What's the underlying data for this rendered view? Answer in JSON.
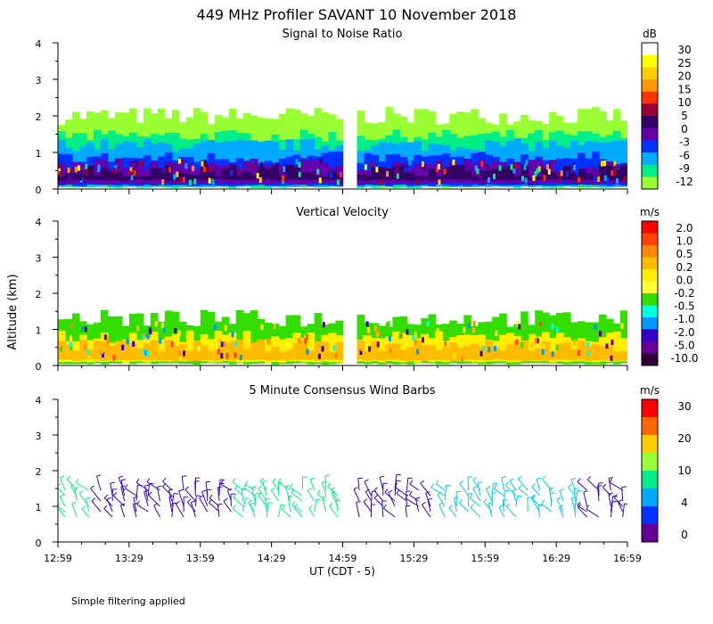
{
  "title": "449 MHz Profiler SAVANT 10 November 2018",
  "ylabel": "Altitude (km)",
  "xlabel": "UT  (CDT - 5)",
  "footnote": "Simple filtering applied",
  "x_ticks": [
    "12:59",
    "13:29",
    "13:59",
    "14:29",
    "14:59",
    "15:29",
    "15:59",
    "16:29",
    "16:59"
  ],
  "colors": {
    "background": "#ffffff",
    "axis": "#000000"
  },
  "chart_data": [
    {
      "type": "heatmap",
      "title": "Signal to Noise Ratio",
      "unit": "dB",
      "ylim": [
        0,
        4
      ],
      "y_ticks": [
        "0",
        "1",
        "2",
        "3",
        "4"
      ],
      "x_range": [
        "12:59",
        "16:59"
      ],
      "colorbar": {
        "labels": [
          "30",
          "25",
          "20",
          "15",
          "10",
          "5",
          "0",
          "-3",
          "-6",
          "-9",
          "-12"
        ],
        "colors": [
          "#ffffff",
          "#ffff00",
          "#ffcc00",
          "#ff9900",
          "#ff3300",
          "#990033",
          "#330066",
          "#6600aa",
          "#0033ff",
          "#00aaff",
          "#00ee88",
          "#99ff33"
        ]
      },
      "bands": [
        {
          "bottom": 0.05,
          "top": 2.0,
          "color": "#99ff33"
        },
        {
          "bottom": 0.05,
          "top": 1.45,
          "color": "#00ee88"
        },
        {
          "bottom": 0.08,
          "top": 1.2,
          "color": "#00aaff"
        },
        {
          "bottom": 0.1,
          "top": 0.85,
          "color": "#0033ff"
        },
        {
          "bottom": 0.15,
          "top": 0.65,
          "color": "#6600aa"
        },
        {
          "bottom": 0.25,
          "top": 0.5,
          "color": "#330066"
        }
      ],
      "data_gap": [
        "14:59",
        "15:03"
      ]
    },
    {
      "type": "heatmap",
      "title": "Vertical Velocity",
      "unit": "m/s",
      "ylim": [
        0,
        4
      ],
      "y_ticks": [
        "0",
        "1",
        "2",
        "3",
        "4"
      ],
      "x_range": [
        "12:59",
        "16:59"
      ],
      "colorbar": {
        "labels": [
          "2.0",
          "1.0",
          "0.5",
          "0.2",
          "0.0",
          "-0.2",
          "-0.5",
          "-1.0",
          "-2.0",
          "-5.0",
          "-10.0"
        ],
        "colors": [
          "#ff0000",
          "#ff4400",
          "#ff8800",
          "#ffbb00",
          "#ffee00",
          "#ffff33",
          "#33dd00",
          "#00ffdd",
          "#0099ff",
          "#3300cc",
          "#660099",
          "#330033"
        ]
      },
      "bands": [
        {
          "bottom": 0.05,
          "top": 1.3,
          "color": "#33dd00"
        },
        {
          "bottom": 0.1,
          "top": 0.8,
          "color": "#ffee00"
        },
        {
          "bottom": 0.15,
          "top": 0.55,
          "color": "#ffbb00"
        }
      ],
      "data_gap": [
        "14:59",
        "15:03"
      ]
    },
    {
      "type": "scatter",
      "title": "5 Minute Consensus Wind Barbs",
      "unit": "m/s",
      "ylim": [
        0,
        4
      ],
      "y_ticks": [
        "0",
        "1",
        "2",
        "3",
        "4"
      ],
      "x_range": [
        "12:59",
        "16:59"
      ],
      "altitudes_km": [
        0.7,
        0.85,
        1.0,
        1.15,
        1.3,
        1.45
      ],
      "colorbar": {
        "labels": [
          "30",
          "20",
          "10",
          "4",
          "0"
        ],
        "colors": [
          "#ff0000",
          "#ff6600",
          "#ffcc00",
          "#99ff33",
          "#00ee88",
          "#00aaff",
          "#0033ff",
          "#660099"
        ]
      },
      "speed_by_period": [
        {
          "from": "12:59",
          "to": "13:14",
          "color": "#00ee88"
        },
        {
          "from": "13:14",
          "to": "14:14",
          "color": "#3300cc"
        },
        {
          "from": "14:14",
          "to": "14:59",
          "color": "#00ee88"
        },
        {
          "from": "15:03",
          "to": "15:39",
          "color": "#3300cc"
        },
        {
          "from": "15:39",
          "to": "16:39",
          "color": "#00ccdd"
        },
        {
          "from": "16:39",
          "to": "16:59",
          "color": "#3300cc"
        }
      ]
    }
  ]
}
